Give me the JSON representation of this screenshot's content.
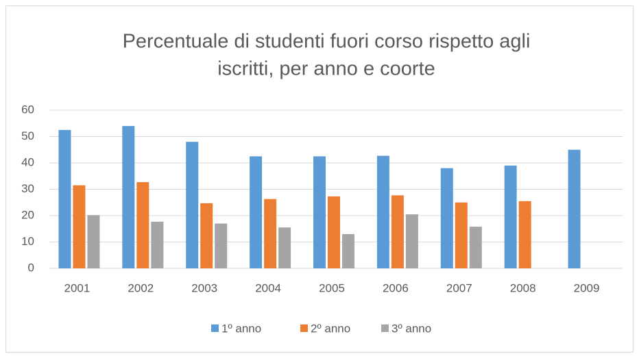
{
  "chart_data": {
    "type": "bar",
    "title": [
      "Percentuale di studenti fuori corso rispetto agli",
      "iscritti, per anno e coorte"
    ],
    "categories": [
      "2001",
      "2002",
      "2003",
      "2004",
      "2005",
      "2006",
      "2007",
      "2008",
      "2009"
    ],
    "series": [
      {
        "name": "1º anno",
        "color": "#5b9bd5",
        "values": [
          52.5,
          54,
          48,
          42.5,
          42.5,
          42.7,
          38,
          39,
          45
        ]
      },
      {
        "name": "2º anno",
        "color": "#ed7d31",
        "values": [
          31.5,
          32.7,
          24.7,
          26.3,
          27.3,
          27.7,
          25,
          25.5,
          null
        ]
      },
      {
        "name": "3º anno",
        "color": "#a5a5a5",
        "values": [
          20.2,
          17.7,
          17,
          15.5,
          13,
          20.5,
          15.8,
          null,
          null
        ]
      }
    ],
    "ylim": [
      0,
      60
    ],
    "yticks": [
      0,
      10,
      20,
      30,
      40,
      50,
      60
    ],
    "grid": true,
    "legend": "bottom"
  }
}
